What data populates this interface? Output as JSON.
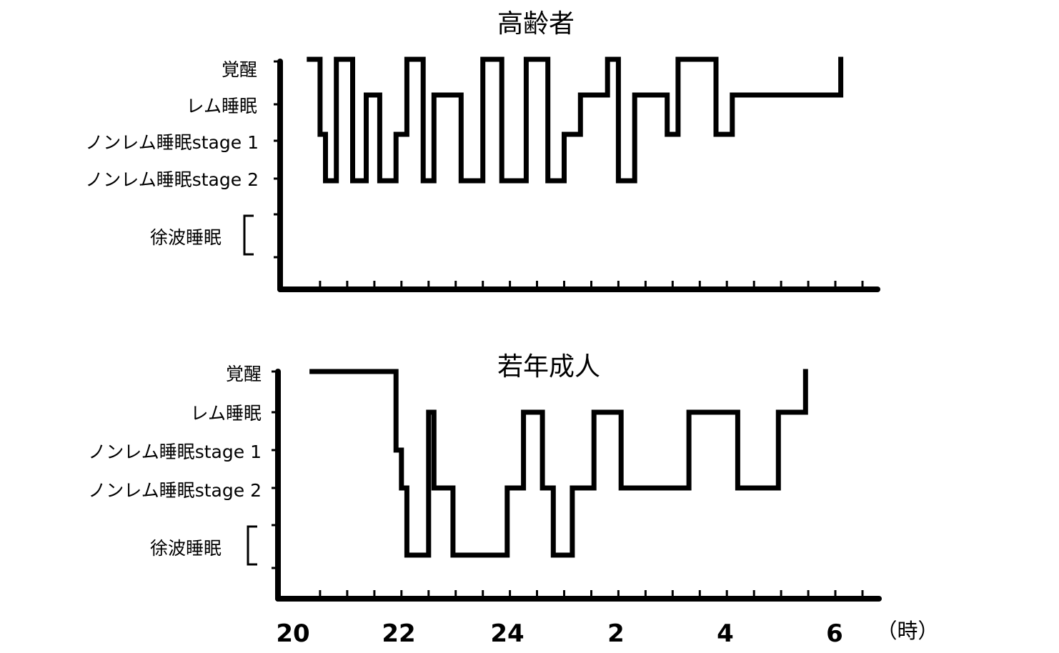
{
  "chart_data": [
    {
      "type": "line",
      "title": "高齢者",
      "y_levels": [
        "覚醒",
        "レム睡眠",
        "ノンレム睡眠stage 1",
        "ノンレム睡眠stage 2",
        "徐波睡眠"
      ],
      "x_range_hours": [
        20,
        30.6
      ],
      "series": [
        {
          "x": [
            20.3,
            20.5,
            20.6,
            20.8,
            21.1,
            21.35,
            21.6,
            21.9,
            22.1,
            22.4,
            22.6,
            23.1,
            23.5,
            23.85,
            24.3,
            24.7,
            25.0,
            25.3,
            25.5,
            25.8,
            26.0,
            26.3,
            26.6,
            26.9,
            27.1,
            27.8,
            28.1,
            28.6,
            28.95,
            29.4,
            30.1
          ],
          "y": [
            "覚醒",
            "ノンレム睡眠stage 1",
            "ノンレム睡眠stage 2",
            "覚醒",
            "ノンレム睡眠stage 2",
            "レム睡眠",
            "ノンレム睡眠stage 2",
            "ノンレム睡眠stage 1",
            "覚醒",
            "ノンレム睡眠stage 2",
            "レム睡眠",
            "ノンレム睡眠stage 2",
            "覚醒",
            "ノンレム睡眠stage 2",
            "覚醒",
            "ノンレム睡眠stage 2",
            "ノンレム睡眠stage 1",
            "レム睡眠",
            "レム睡眠",
            "覚醒",
            "ノンレム睡眠stage 2",
            "レム睡眠",
            "レム睡眠",
            "ノンレム睡眠stage 1",
            "覚醒",
            "ノンレム睡眠stage 1",
            "レム睡眠",
            "レム睡眠",
            "レム睡眠",
            "レム睡眠",
            "覚醒"
          ]
        }
      ]
    },
    {
      "type": "line",
      "title": "若年成人",
      "y_levels": [
        "覚醒",
        "レム睡眠",
        "ノンレム睡眠stage 1",
        "ノンレム睡眠stage 2",
        "徐波睡眠"
      ],
      "x_range_hours": [
        20,
        30.6
      ],
      "series": [
        {
          "x": [
            20.35,
            21.9,
            22.0,
            22.1,
            22.2,
            22.5,
            22.6,
            22.95,
            23.95,
            24.25,
            24.6,
            24.8,
            24.95,
            25.15,
            25.55,
            26.05,
            26.75,
            27.3,
            28.2,
            28.95,
            29.45
          ],
          "y": [
            "覚醒",
            "ノンレム睡眠stage 1",
            "ノンレム睡眠stage 2",
            "徐波睡眠",
            "徐波睡眠",
            "レム睡眠",
            "ノンレム睡眠stage 2",
            "徐波睡眠",
            "ノンレム睡眠stage 2",
            "レム睡眠",
            "ノンレム睡眠stage 2",
            "徐波睡眠",
            "徐波睡眠",
            "ノンレム睡眠stage 2",
            "レム睡眠",
            "ノンレム睡眠stage 2",
            "ノンレム睡眠stage 2",
            "レム睡眠",
            "ノンレム睡眠stage 2",
            "レム睡眠",
            "覚醒"
          ]
        }
      ]
    }
  ],
  "x_ticks": [
    "20",
    "22",
    "24",
    "2",
    "4",
    "6"
  ],
  "x_unit": "（時）"
}
